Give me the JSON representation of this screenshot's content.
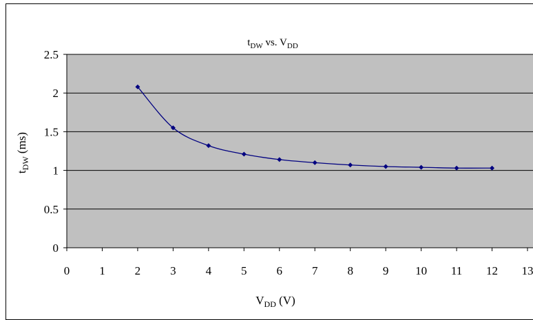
{
  "chart_data": {
    "type": "line",
    "title": {
      "base": "t",
      "sub": "DW",
      "mid": " vs. V",
      "sub2": "DD"
    },
    "xlabel": {
      "base": "V",
      "sub": "DD",
      "rest": " (V)"
    },
    "ylabel": {
      "base": "t",
      "sub": "DW",
      "rest": " (ms)"
    },
    "xlim": [
      0,
      13
    ],
    "ylim": [
      0,
      2.5
    ],
    "x_ticks": [
      "0",
      "1",
      "2",
      "3",
      "4",
      "5",
      "6",
      "7",
      "8",
      "9",
      "10",
      "11",
      "12",
      "13"
    ],
    "y_ticks": [
      "0",
      "0.5",
      "1",
      "1.5",
      "2",
      "2.5"
    ],
    "grid": true,
    "plot_background": "#c0c0c0",
    "series_color": "#000080",
    "series": [
      {
        "x": [
          2,
          3,
          4,
          5,
          6,
          7,
          8,
          9,
          10,
          11,
          12
        ],
        "values": [
          2.08,
          1.55,
          1.32,
          1.21,
          1.14,
          1.1,
          1.07,
          1.05,
          1.04,
          1.03,
          1.03
        ]
      }
    ]
  }
}
